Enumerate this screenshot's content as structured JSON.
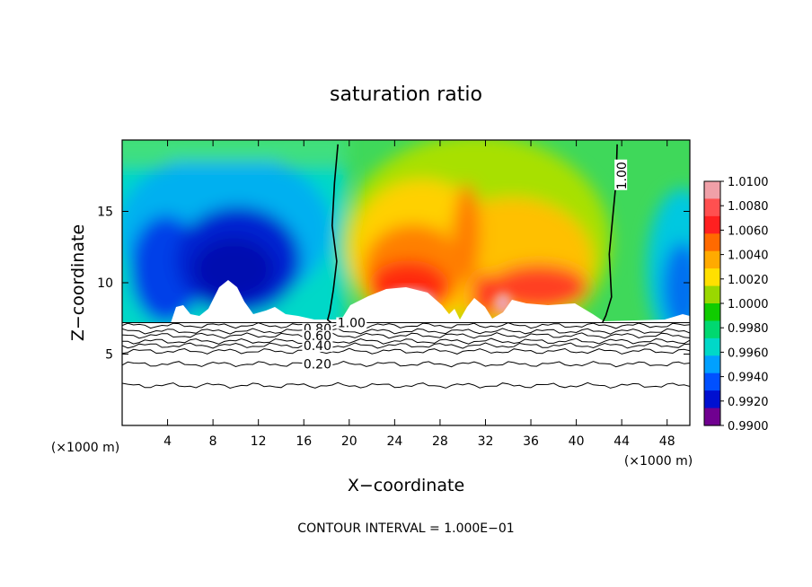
{
  "chart_data": {
    "type": "heatmap",
    "title": "saturation ratio",
    "xlabel": "X−coordinate",
    "ylabel": "Z−coordinate",
    "x_unit": "(×1000 m)",
    "footer": "CONTOUR INTERVAL = 1.000E−01",
    "xlim": [
      0,
      50
    ],
    "ylim": [
      0,
      20
    ],
    "xticks": [
      4,
      8,
      12,
      16,
      20,
      24,
      28,
      32,
      36,
      40,
      44,
      48
    ],
    "yticks": [
      5,
      10,
      15
    ],
    "colorbar": {
      "min": 0.99,
      "max": 1.01,
      "labels": [
        "1.0100",
        "1.0080",
        "1.0060",
        "1.0040",
        "1.0020",
        "1.0000",
        "0.9980",
        "0.9960",
        "0.9940",
        "0.9920",
        "0.9900"
      ],
      "colors": [
        "#f0a0a8",
        "#ff5050",
        "#ff2020",
        "#ff6a00",
        "#ffaa00",
        "#ffe000",
        "#9ad800",
        "#10cc00",
        "#00d870",
        "#00d8c8",
        "#00a0ff",
        "#0050ff",
        "#0010d0",
        "#700090"
      ]
    },
    "contour_labels": [
      {
        "text": "1.00",
        "x": 20.2,
        "y": 7.2
      },
      {
        "text": "1.00",
        "x": 44.0,
        "y": 17.5
      },
      {
        "text": "0.80",
        "x": 17.2,
        "y": 6.8
      },
      {
        "text": "0.60",
        "x": 17.2,
        "y": 6.3
      },
      {
        "text": "0.40",
        "x": 17.2,
        "y": 5.6
      },
      {
        "text": "0.20",
        "x": 17.2,
        "y": 4.3
      }
    ],
    "contour_lines_below_cloud": [
      7.0,
      6.6,
      6.3,
      5.9,
      5.6,
      5.2,
      4.3,
      2.8
    ],
    "cloud_base_z": 7.2,
    "saturation_one_contours": [
      {
        "x": [
          19.0,
          18.7,
          18.5,
          18.9,
          18.6,
          18.3,
          18.1,
          18.4
        ],
        "z": [
          19.7,
          17.0,
          14.0,
          11.5,
          9.5,
          8.0,
          7.4,
          7.2
        ]
      },
      {
        "x": [
          43.6,
          43.5,
          43.2,
          42.9,
          43.1,
          42.6,
          42.3
        ],
        "z": [
          19.7,
          17.0,
          14.5,
          12.0,
          9.0,
          7.7,
          7.2
        ]
      }
    ]
  }
}
